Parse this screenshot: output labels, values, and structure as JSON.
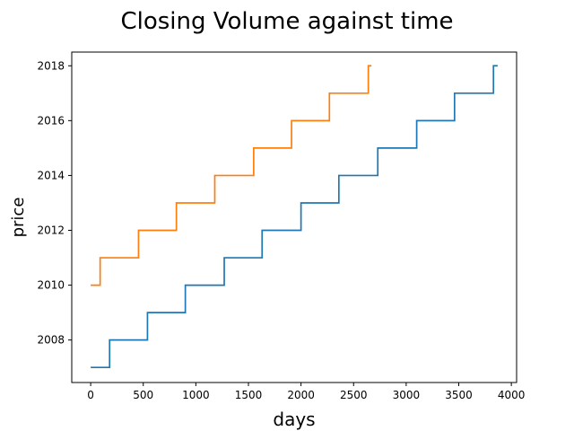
{
  "chart_data": {
    "type": "line",
    "title": "Closing Volume against time",
    "xlabel": "days",
    "ylabel": "price",
    "xlim": [
      -180,
      4050
    ],
    "ylim": [
      2006.45,
      2018.5
    ],
    "x_ticks": [
      0,
      500,
      1000,
      1500,
      2000,
      2500,
      3000,
      3500,
      4000
    ],
    "y_ticks": [
      2008,
      2010,
      2012,
      2014,
      2016,
      2018
    ],
    "grid": false,
    "legend": "none",
    "series": [
      {
        "color": "#1f77b4",
        "x": [
          0,
          180,
          180,
          540,
          540,
          900,
          900,
          1270,
          1270,
          1630,
          1630,
          2000,
          2000,
          2360,
          2360,
          2730,
          2730,
          3100,
          3100,
          3460,
          3460,
          3830,
          3830,
          3870
        ],
        "y": [
          2007,
          2007,
          2008,
          2008,
          2009,
          2009,
          2010,
          2010,
          2011,
          2011,
          2012,
          2012,
          2013,
          2013,
          2014,
          2014,
          2015,
          2015,
          2016,
          2016,
          2017,
          2017,
          2018,
          2018
        ]
      },
      {
        "color": "#ff7f0e",
        "x": [
          0,
          90,
          90,
          455,
          455,
          815,
          815,
          1180,
          1180,
          1550,
          1550,
          1910,
          1910,
          2270,
          2270,
          2640,
          2640,
          2670
        ],
        "y": [
          2010,
          2010,
          2011,
          2011,
          2012,
          2012,
          2013,
          2013,
          2014,
          2014,
          2015,
          2015,
          2016,
          2016,
          2017,
          2017,
          2018,
          2018
        ]
      }
    ]
  }
}
